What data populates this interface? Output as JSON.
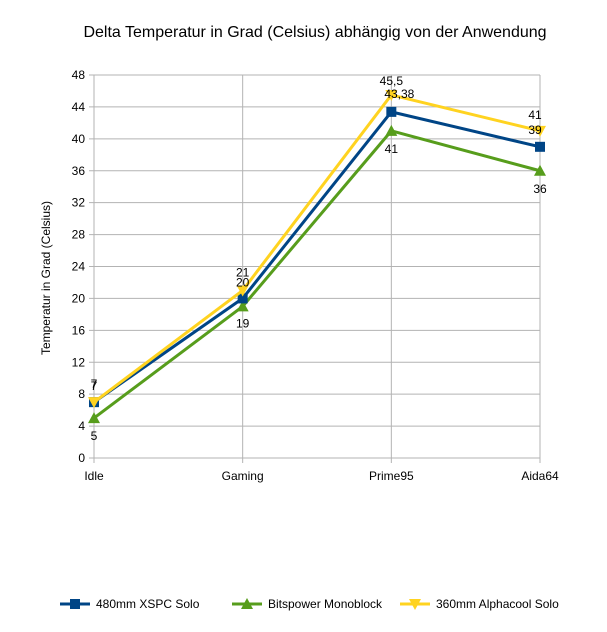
{
  "chart_data": {
    "type": "line",
    "title": "Delta Temperatur in Grad (Celsius) abhängig von der Anwendung",
    "xlabel": "",
    "ylabel": "Temperatur in Grad (Celsius)",
    "categories": [
      "Idle",
      "Gaming",
      "Prime95",
      "Aida64"
    ],
    "ylim": [
      0,
      48
    ],
    "yticks": [
      0,
      4,
      8,
      12,
      16,
      20,
      24,
      28,
      32,
      36,
      40,
      44,
      48
    ],
    "grid": true,
    "legend_position": "bottom",
    "series": [
      {
        "name": "480mm XSPC Solo",
        "values": [
          7,
          20,
          43.38,
          39
        ],
        "labels": [
          "7",
          "20",
          "43,38",
          "39"
        ],
        "color": "#004586",
        "marker": "square"
      },
      {
        "name": "Bitspower Monoblock",
        "values": [
          5,
          19,
          41,
          36
        ],
        "labels": [
          "5",
          "19",
          "41",
          "36"
        ],
        "color": "#579d1c",
        "marker": "triangle-up"
      },
      {
        "name": "360mm Alphacool Solo",
        "values": [
          7,
          21,
          45.5,
          41
        ],
        "labels": [
          "7",
          "21",
          "45,5",
          "41"
        ],
        "color": "#ffd320",
        "marker": "triangle-down"
      }
    ]
  }
}
